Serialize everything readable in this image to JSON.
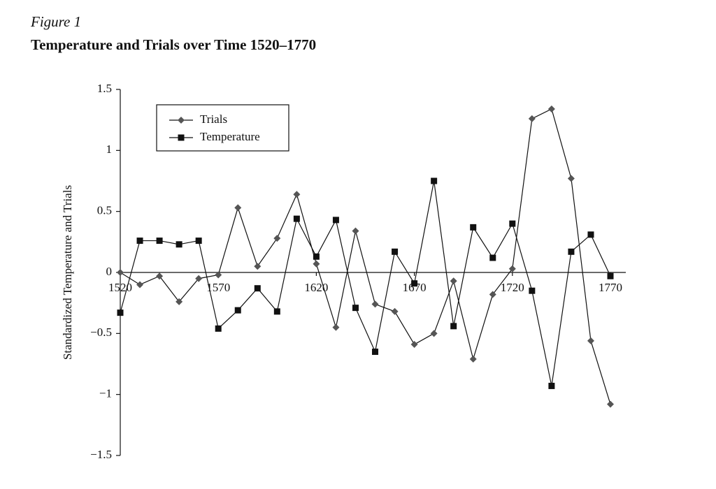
{
  "chart_data": {
    "type": "line",
    "figure_label": "Figure 1",
    "title": "Temperature and Trials over Time 1520–1770",
    "y_label": "Standardized Temperature and Trials",
    "x": [
      1520,
      1530,
      1540,
      1550,
      1560,
      1570,
      1580,
      1590,
      1600,
      1610,
      1620,
      1630,
      1640,
      1650,
      1660,
      1670,
      1680,
      1690,
      1700,
      1710,
      1720,
      1730,
      1740,
      1750,
      1760,
      1770
    ],
    "series": [
      {
        "name": "Trials",
        "color": "#555555",
        "marker": "diamond",
        "values": [
          0,
          -0.1,
          -0.03,
          -0.24,
          -0.05,
          -0.02,
          0.53,
          0.05,
          0.28,
          0.64,
          0.07,
          -0.45,
          0.34,
          -0.26,
          -0.32,
          -0.59,
          -0.5,
          -0.07,
          -0.71,
          -0.18,
          0.03,
          1.26,
          1.34,
          0.77,
          -0.56,
          -1.08
        ]
      },
      {
        "name": "Temperature",
        "color": "#111111",
        "marker": "square",
        "values": [
          -0.33,
          0.26,
          0.26,
          0.23,
          0.26,
          -0.46,
          -0.31,
          -0.13,
          -0.32,
          0.44,
          0.13,
          0.43,
          -0.29,
          -0.65,
          0.17,
          -0.09,
          0.75,
          -0.44,
          0.37,
          0.12,
          0.4,
          -0.15,
          -0.93,
          0.17,
          0.31,
          -0.03
        ]
      }
    ],
    "xlim": [
      1520,
      1770
    ],
    "xticks": [
      1520,
      1570,
      1620,
      1670,
      1720,
      1770
    ],
    "ylim": [
      -1.5,
      1.5
    ],
    "yticks": [
      1.5,
      1,
      0.5,
      0,
      {
        "value": -0.5,
        "label": "−0.5"
      },
      {
        "value": -1,
        "label": "−1"
      },
      {
        "value": -1.5,
        "label": "−1.5"
      }
    ],
    "legend": "upper-left"
  }
}
